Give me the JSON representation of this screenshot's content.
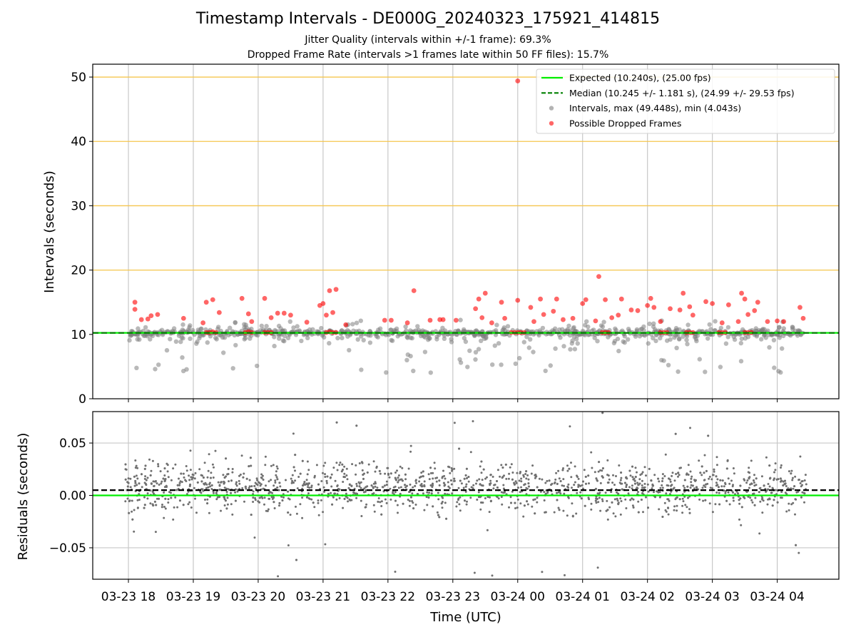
{
  "figure": {
    "title": "Timestamp Intervals - DE000G_20240323_175921_414815",
    "subtitle_1": "Jitter Quality (intervals within +/-1 frame): 69.3%",
    "subtitle_2": "Dropped Frame Rate (intervals >1 frames late within 50 FF files): 15.7%",
    "xlabel": "Time (UTC)"
  },
  "chart_data": [
    {
      "type": "scatter",
      "title": "",
      "ylabel": "Intervals (seconds)",
      "ylim": [
        0,
        52
      ],
      "yticks": [
        0,
        10,
        20,
        30,
        40,
        50
      ],
      "x_tick_labels": [
        "03-23 18",
        "03-23 19",
        "03-23 20",
        "03-23 21",
        "03-23 22",
        "03-23 23",
        "03-24 00",
        "03-24 01",
        "03-24 02",
        "03-24 03",
        "03-24 04"
      ],
      "xlim_hours": [
        17.45,
        28.95
      ],
      "grid": true,
      "legend_position": "top-right",
      "reference_lines": {
        "expected": {
          "value": 10.24,
          "color": "#00ee00",
          "style": "solid",
          "label": "Expected (10.240s), (25.00 fps)"
        },
        "median": {
          "value": 10.245,
          "color": "#008000",
          "style": "dashed",
          "label": "Median (10.245 +/- 1.181 s), (24.99 +/- 29.53 fps)"
        },
        "orange_levels": [
          20,
          30,
          40,
          50
        ]
      },
      "series": [
        {
          "name": "Intervals, max (49.448s), min (4.043s)",
          "color": "#808080",
          "summary": {
            "max": 49.448,
            "min": 4.043,
            "typical_low": 7.5,
            "typical_high": 11.5
          }
        },
        {
          "name": "Possible Dropped Frames",
          "color": "#ff0000",
          "points": [
            {
              "x": 18.1,
              "y": 13.9
            },
            {
              "x": 18.1,
              "y": 15.0
            },
            {
              "x": 18.2,
              "y": 12.3
            },
            {
              "x": 18.3,
              "y": 12.4
            },
            {
              "x": 18.35,
              "y": 12.9
            },
            {
              "x": 18.45,
              "y": 13.1
            },
            {
              "x": 18.85,
              "y": 12.5
            },
            {
              "x": 19.15,
              "y": 11.8
            },
            {
              "x": 19.2,
              "y": 15.0
            },
            {
              "x": 19.3,
              "y": 15.4
            },
            {
              "x": 19.4,
              "y": 13.4
            },
            {
              "x": 19.75,
              "y": 15.6
            },
            {
              "x": 19.85,
              "y": 13.2
            },
            {
              "x": 19.9,
              "y": 12.0
            },
            {
              "x": 20.1,
              "y": 15.6
            },
            {
              "x": 20.2,
              "y": 12.6
            },
            {
              "x": 20.3,
              "y": 13.3
            },
            {
              "x": 20.4,
              "y": 13.3
            },
            {
              "x": 20.5,
              "y": 13.0
            },
            {
              "x": 20.75,
              "y": 11.9
            },
            {
              "x": 20.95,
              "y": 14.5
            },
            {
              "x": 21.0,
              "y": 14.8
            },
            {
              "x": 21.05,
              "y": 13.0
            },
            {
              "x": 21.1,
              "y": 16.8
            },
            {
              "x": 21.15,
              "y": 13.4
            },
            {
              "x": 21.2,
              "y": 17.0
            },
            {
              "x": 21.35,
              "y": 11.5
            },
            {
              "x": 21.95,
              "y": 12.2
            },
            {
              "x": 22.05,
              "y": 12.2
            },
            {
              "x": 22.3,
              "y": 11.8
            },
            {
              "x": 22.4,
              "y": 16.8
            },
            {
              "x": 22.65,
              "y": 12.2
            },
            {
              "x": 22.8,
              "y": 12.3
            },
            {
              "x": 22.85,
              "y": 12.3
            },
            {
              "x": 23.05,
              "y": 12.2
            },
            {
              "x": 23.35,
              "y": 14.0
            },
            {
              "x": 23.4,
              "y": 15.5
            },
            {
              "x": 23.45,
              "y": 12.6
            },
            {
              "x": 23.5,
              "y": 16.4
            },
            {
              "x": 23.6,
              "y": 11.8
            },
            {
              "x": 23.75,
              "y": 15.0
            },
            {
              "x": 23.8,
              "y": 12.5
            },
            {
              "x": 24.0,
              "y": 15.3
            },
            {
              "x": 24.0,
              "y": 49.4
            },
            {
              "x": 24.2,
              "y": 14.2
            },
            {
              "x": 24.25,
              "y": 12.0
            },
            {
              "x": 24.35,
              "y": 15.5
            },
            {
              "x": 24.4,
              "y": 13.1
            },
            {
              "x": 24.55,
              "y": 13.6
            },
            {
              "x": 24.6,
              "y": 15.5
            },
            {
              "x": 24.7,
              "y": 12.3
            },
            {
              "x": 24.85,
              "y": 12.5
            },
            {
              "x": 25.0,
              "y": 14.8
            },
            {
              "x": 25.05,
              "y": 15.4
            },
            {
              "x": 25.2,
              "y": 12.1
            },
            {
              "x": 25.25,
              "y": 19.0
            },
            {
              "x": 25.35,
              "y": 15.4
            },
            {
              "x": 25.45,
              "y": 12.6
            },
            {
              "x": 25.55,
              "y": 13.0
            },
            {
              "x": 25.6,
              "y": 15.5
            },
            {
              "x": 25.75,
              "y": 13.8
            },
            {
              "x": 25.85,
              "y": 13.7
            },
            {
              "x": 26.0,
              "y": 14.5
            },
            {
              "x": 26.05,
              "y": 15.6
            },
            {
              "x": 26.1,
              "y": 14.2
            },
            {
              "x": 26.2,
              "y": 12.0
            },
            {
              "x": 26.35,
              "y": 14.0
            },
            {
              "x": 26.5,
              "y": 13.8
            },
            {
              "x": 26.55,
              "y": 16.4
            },
            {
              "x": 26.65,
              "y": 14.3
            },
            {
              "x": 26.7,
              "y": 13.0
            },
            {
              "x": 26.9,
              "y": 15.1
            },
            {
              "x": 27.0,
              "y": 14.8
            },
            {
              "x": 27.15,
              "y": 11.8
            },
            {
              "x": 27.25,
              "y": 14.6
            },
            {
              "x": 27.4,
              "y": 12.0
            },
            {
              "x": 27.45,
              "y": 16.4
            },
            {
              "x": 27.5,
              "y": 15.5
            },
            {
              "x": 27.55,
              "y": 13.1
            },
            {
              "x": 27.65,
              "y": 13.7
            },
            {
              "x": 27.7,
              "y": 15.0
            },
            {
              "x": 27.85,
              "y": 12.0
            },
            {
              "x": 28.0,
              "y": 12.1
            },
            {
              "x": 28.1,
              "y": 12.0
            },
            {
              "x": 28.35,
              "y": 14.2
            },
            {
              "x": 28.4,
              "y": 12.5
            },
            {
              "x": 19.2,
              "y": 10.3
            },
            {
              "x": 19.25,
              "y": 10.3
            },
            {
              "x": 19.3,
              "y": 10.4
            },
            {
              "x": 19.35,
              "y": 10.3
            },
            {
              "x": 19.8,
              "y": 10.3
            },
            {
              "x": 19.85,
              "y": 10.4
            },
            {
              "x": 19.9,
              "y": 10.3
            },
            {
              "x": 20.1,
              "y": 10.3
            },
            {
              "x": 20.15,
              "y": 10.3
            },
            {
              "x": 20.2,
              "y": 10.3
            },
            {
              "x": 21.05,
              "y": 10.3
            },
            {
              "x": 21.1,
              "y": 10.4
            },
            {
              "x": 21.15,
              "y": 10.3
            },
            {
              "x": 21.2,
              "y": 10.3
            },
            {
              "x": 23.9,
              "y": 10.3
            },
            {
              "x": 23.95,
              "y": 10.3
            },
            {
              "x": 24.0,
              "y": 10.3
            },
            {
              "x": 24.05,
              "y": 10.3
            },
            {
              "x": 24.1,
              "y": 10.3
            },
            {
              "x": 25.3,
              "y": 10.3
            },
            {
              "x": 25.35,
              "y": 10.3
            },
            {
              "x": 25.4,
              "y": 10.3
            },
            {
              "x": 26.2,
              "y": 10.3
            },
            {
              "x": 26.25,
              "y": 10.3
            },
            {
              "x": 26.3,
              "y": 10.3
            },
            {
              "x": 26.6,
              "y": 10.3
            },
            {
              "x": 26.65,
              "y": 10.3
            },
            {
              "x": 26.7,
              "y": 10.3
            },
            {
              "x": 27.1,
              "y": 10.3
            },
            {
              "x": 27.15,
              "y": 10.3
            },
            {
              "x": 27.2,
              "y": 10.3
            },
            {
              "x": 27.5,
              "y": 10.3
            },
            {
              "x": 27.55,
              "y": 10.3
            },
            {
              "x": 27.6,
              "y": 10.3
            }
          ]
        }
      ]
    },
    {
      "type": "scatter",
      "title": "",
      "ylabel": "Residuals (seconds)",
      "ylim": [
        -0.08,
        0.08
      ],
      "yticks": [
        0.05,
        0.0,
        -0.05
      ],
      "ytick_labels": [
        "0.05",
        "0.00",
        "−0.05"
      ],
      "grid": true,
      "reference_lines": {
        "expected": {
          "value": 0.0,
          "color": "#00ee00",
          "style": "solid"
        },
        "median": {
          "value": 0.005,
          "color": "#000000",
          "style": "dashed"
        }
      },
      "series": [
        {
          "name": "",
          "color": "#707070",
          "summary": {
            "typical_low": -0.03,
            "typical_high": 0.045,
            "min_visible": -0.08,
            "max_visible": 0.08
          }
        }
      ]
    }
  ]
}
